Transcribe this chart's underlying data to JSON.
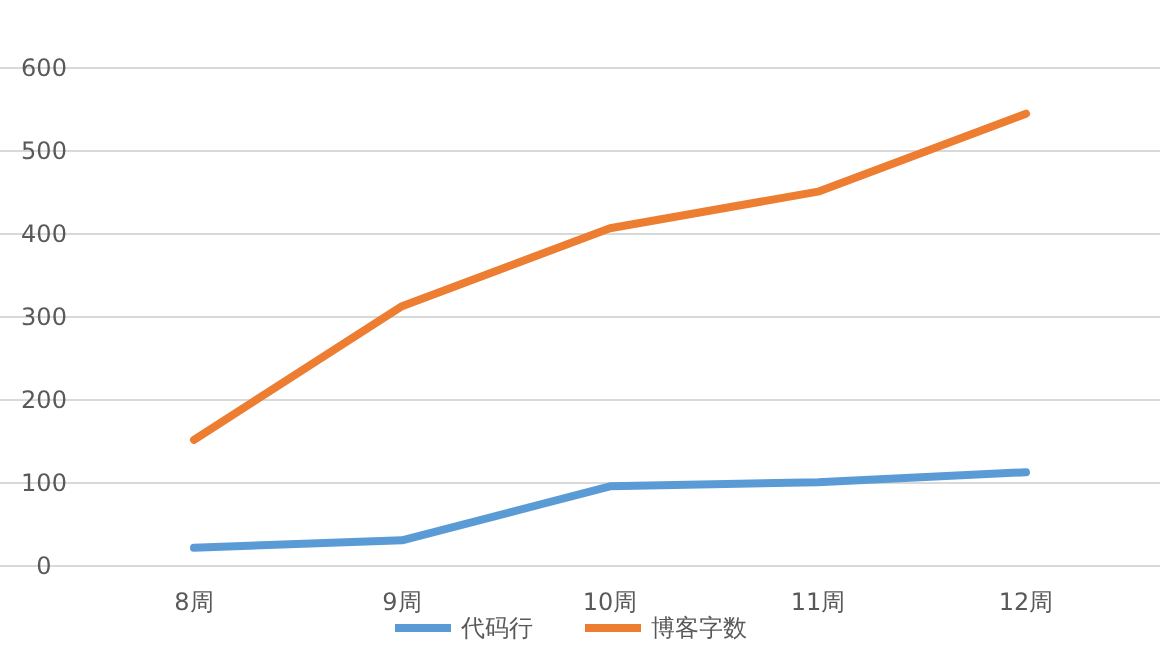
{
  "chart_data": {
    "type": "line",
    "categories": [
      "8周",
      "9周",
      "10周",
      "11周",
      "12周"
    ],
    "series": [
      {
        "name": "代码行",
        "color": "#5b9bd5",
        "values": [
          22,
          31,
          96,
          101,
          113
        ]
      },
      {
        "name": "博客字数",
        "color": "#ed7d31",
        "values": [
          152,
          313,
          407,
          451,
          545
        ]
      }
    ],
    "ylim": [
      0,
      600
    ],
    "yticks": [
      0,
      100,
      200,
      300,
      400,
      500,
      600
    ],
    "grid": "y",
    "legend": "bottom",
    "marker": "none",
    "line_style": "solid"
  }
}
